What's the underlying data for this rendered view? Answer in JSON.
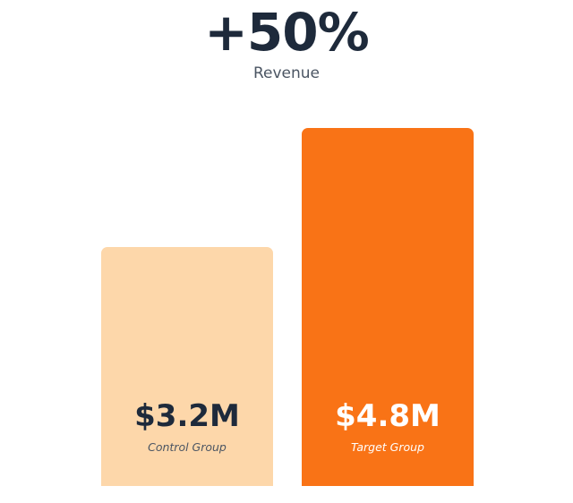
{
  "headline": {
    "value": "+50%",
    "metric": "Revenue"
  },
  "colors": {
    "control_bar": "#fdd7aa",
    "target_bar": "#f97316",
    "dark_text": "#1e2a3b",
    "light_text": "#ffffff"
  },
  "chart_data": {
    "type": "bar",
    "categories": [
      "Control Group",
      "Target Group"
    ],
    "values": [
      3.2,
      4.8
    ],
    "value_labels": [
      "$3.2M",
      "$4.8M"
    ],
    "unit": "$M",
    "title": "Revenue",
    "ylim": [
      0,
      4.8
    ],
    "grid": false,
    "legend": "none"
  }
}
